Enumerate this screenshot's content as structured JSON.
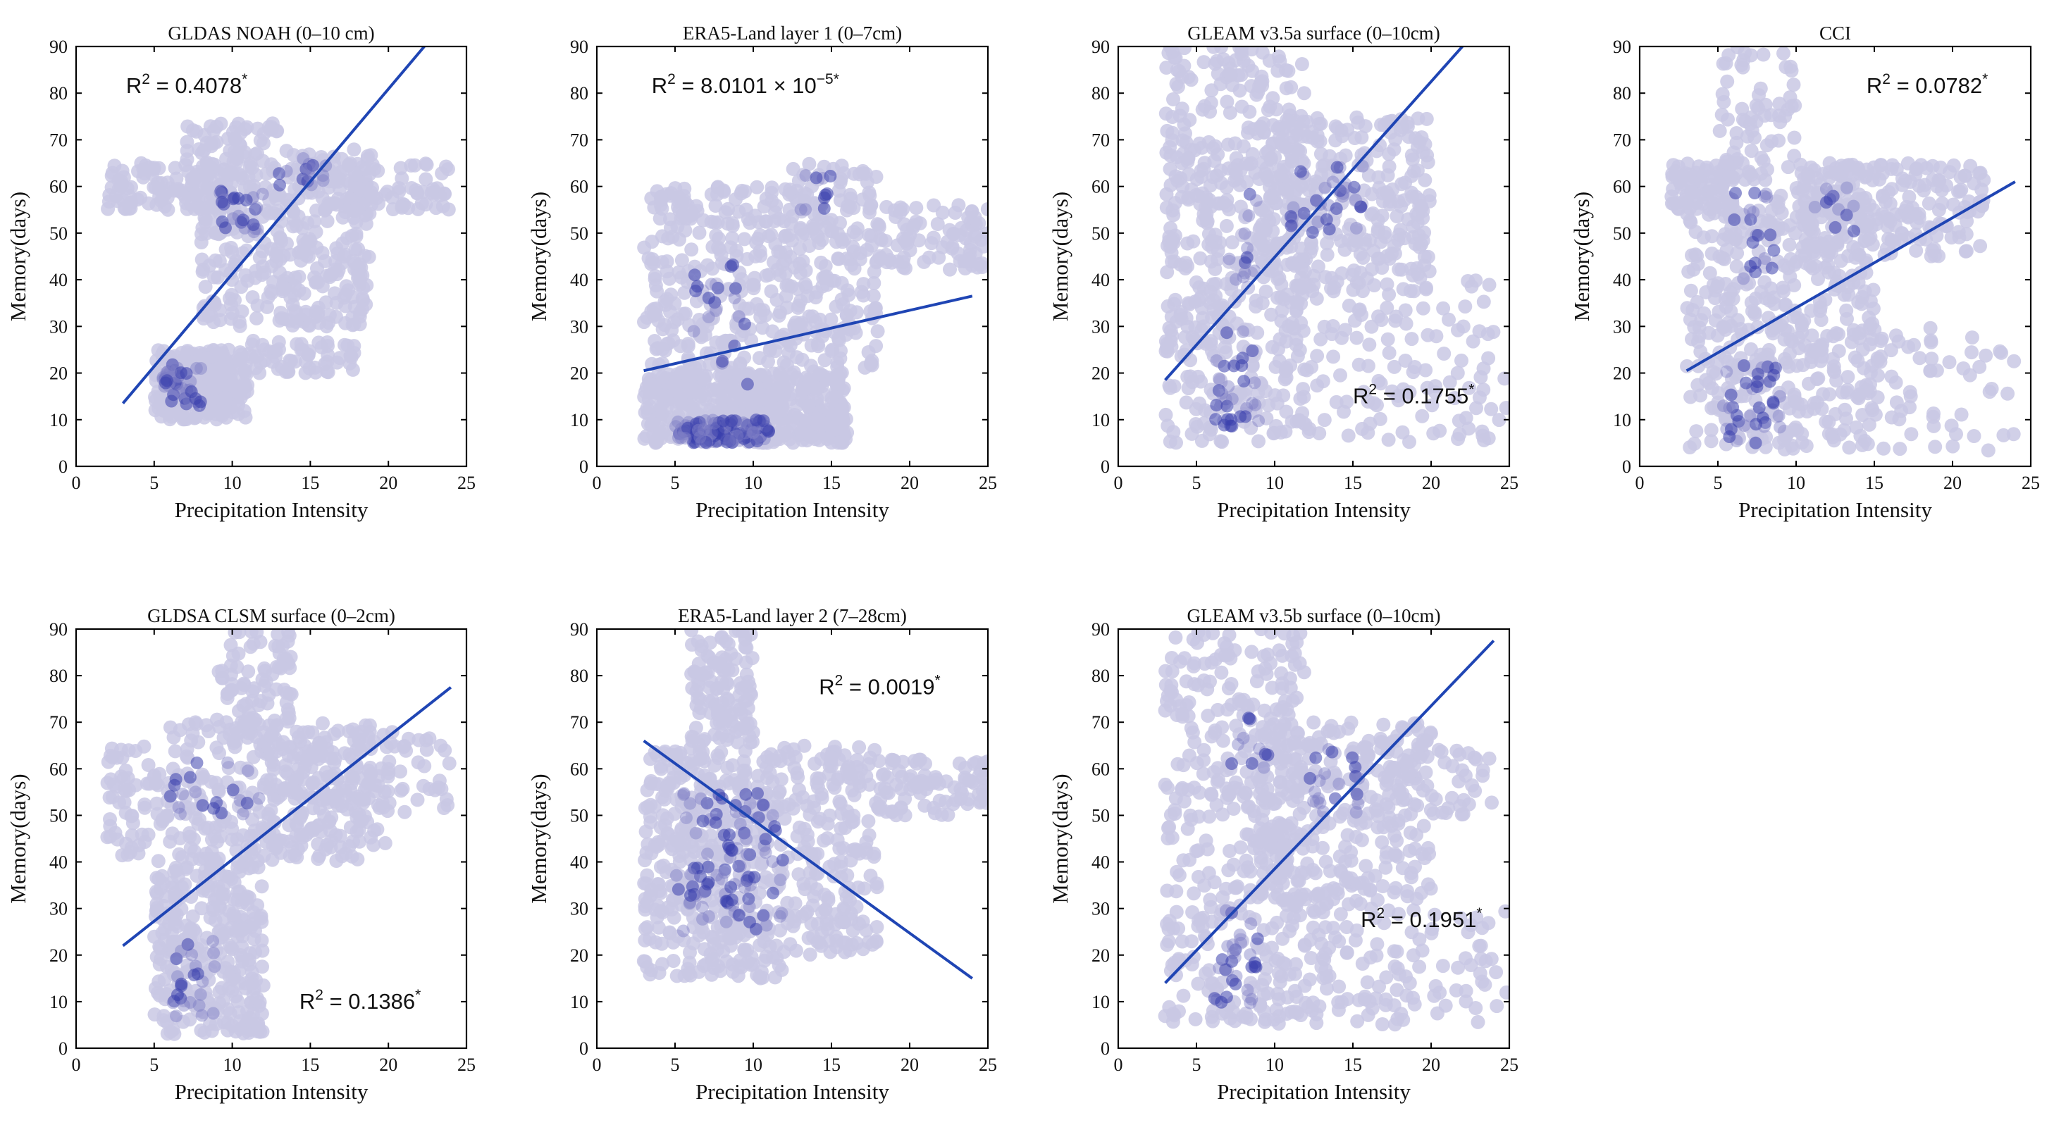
{
  "colors": {
    "density_low": "#c9c8e4",
    "density_mid": "#7f7fc6",
    "density_high": "#3a3fad",
    "fit_line": "#1f45b4"
  },
  "chart_data": [
    {
      "type": "scatter",
      "title": "GLDAS NOAH (0–10 cm)",
      "xlabel": "Precipitation Intensity",
      "ylabel": "Memory(days)",
      "xlim": [
        0,
        25
      ],
      "ylim": [
        0,
        90
      ],
      "xticks": [
        0,
        5,
        10,
        15,
        20,
        25
      ],
      "yticks": [
        0,
        10,
        20,
        30,
        40,
        50,
        60,
        70,
        80,
        90
      ],
      "r2": {
        "prefix": "R",
        "sup": "2",
        "value": " = 0.4078",
        "star": "*",
        "x": 3.2,
        "y": 80
      },
      "fit": {
        "x": [
          3,
          22.3
        ],
        "y": [
          13.5,
          90
        ]
      },
      "clusters": [
        {
          "x": [
            5,
            11
          ],
          "y": [
            10,
            25
          ],
          "n": 240
        },
        {
          "x": [
            8,
            19
          ],
          "y": [
            30,
            68
          ],
          "n": 380
        },
        {
          "x": [
            2,
            10
          ],
          "y": [
            55,
            65
          ],
          "n": 120
        },
        {
          "x": [
            15,
            24
          ],
          "y": [
            55,
            65
          ],
          "n": 90
        },
        {
          "x": [
            11,
            18
          ],
          "y": [
            20,
            27
          ],
          "n": 60
        },
        {
          "x": [
            7,
            13
          ],
          "y": [
            65,
            74
          ],
          "n": 50
        }
      ],
      "dense": [
        {
          "x": [
            5.5,
            8
          ],
          "y": [
            13,
            22
          ],
          "n": 40
        },
        {
          "x": [
            9,
            12
          ],
          "y": [
            50,
            60
          ],
          "n": 25
        },
        {
          "x": [
            13,
            16
          ],
          "y": [
            60,
            66
          ],
          "n": 15
        }
      ]
    },
    {
      "type": "scatter",
      "title": "ERA5-Land layer 1 (0–7cm)",
      "xlabel": "Precipitation Intensity",
      "ylabel": "Memory(days)",
      "xlim": [
        0,
        25
      ],
      "ylim": [
        0,
        90
      ],
      "xticks": [
        0,
        5,
        10,
        15,
        20,
        25
      ],
      "yticks": [
        0,
        10,
        20,
        30,
        40,
        50,
        60,
        70,
        80,
        90
      ],
      "r2": {
        "prefix": "R",
        "sup": "2",
        "value": " = 8.0101 × 10",
        "sup2": "−5",
        "star": "*",
        "x": 3.5,
        "y": 80
      },
      "fit": {
        "x": [
          3,
          24
        ],
        "y": [
          20.5,
          36.5
        ]
      },
      "clusters": [
        {
          "x": [
            3,
            16
          ],
          "y": [
            5,
            20
          ],
          "n": 480
        },
        {
          "x": [
            3,
            12
          ],
          "y": [
            20,
            60
          ],
          "n": 260
        },
        {
          "x": [
            12,
            18
          ],
          "y": [
            20,
            65
          ],
          "n": 220
        },
        {
          "x": [
            18,
            25
          ],
          "y": [
            42,
            56
          ],
          "n": 90
        }
      ],
      "dense": [
        {
          "x": [
            5,
            11
          ],
          "y": [
            5,
            10
          ],
          "n": 120
        },
        {
          "x": [
            6,
            10
          ],
          "y": [
            15,
            45
          ],
          "n": 20
        },
        {
          "x": [
            13,
            15
          ],
          "y": [
            55,
            63
          ],
          "n": 10
        }
      ]
    },
    {
      "type": "scatter",
      "title": "GLEAM v3.5a surface (0–10cm)",
      "xlabel": "Precipitation Intensity",
      "ylabel": "Memory(days)",
      "xlim": [
        0,
        25
      ],
      "ylim": [
        0,
        90
      ],
      "xticks": [
        0,
        5,
        10,
        15,
        20,
        25
      ],
      "yticks": [
        0,
        10,
        20,
        30,
        40,
        50,
        60,
        70,
        80,
        90
      ],
      "r2": {
        "prefix": "R",
        "sup": "2",
        "value": " = 0.1755",
        "star": "*",
        "x": 15,
        "y": 13.5
      },
      "fit": {
        "x": [
          3,
          22
        ],
        "y": [
          18.5,
          90
        ]
      },
      "clusters": [
        {
          "x": [
            3,
            12
          ],
          "y": [
            5,
            90
          ],
          "n": 420
        },
        {
          "x": [
            9,
            20
          ],
          "y": [
            40,
            75
          ],
          "n": 300
        },
        {
          "x": [
            10,
            25
          ],
          "y": [
            5,
            40
          ],
          "n": 150
        },
        {
          "x": [
            3,
            7
          ],
          "y": [
            20,
            70
          ],
          "n": 60
        }
      ],
      "dense": [
        {
          "x": [
            6,
            9
          ],
          "y": [
            8,
            30
          ],
          "n": 30
        },
        {
          "x": [
            11,
            16
          ],
          "y": [
            50,
            65
          ],
          "n": 30
        },
        {
          "x": [
            6,
            9
          ],
          "y": [
            40,
            60
          ],
          "n": 12
        }
      ]
    },
    {
      "type": "scatter",
      "title": "CCI",
      "xlabel": "Precipitation Intensity",
      "ylabel": "Memory(days)",
      "xlim": [
        0,
        25
      ],
      "ylim": [
        0,
        90
      ],
      "xticks": [
        0,
        5,
        10,
        15,
        20,
        25
      ],
      "yticks": [
        0,
        10,
        20,
        30,
        40,
        50,
        60,
        70,
        80,
        90
      ],
      "r2": {
        "prefix": "R",
        "sup": "2",
        "value": " = 0.0782",
        "star": "*",
        "x": 14.5,
        "y": 80
      },
      "fit": {
        "x": [
          3,
          24
        ],
        "y": [
          20.5,
          61
        ]
      },
      "clusters": [
        {
          "x": [
            3,
            15
          ],
          "y": [
            3,
            65
          ],
          "n": 500
        },
        {
          "x": [
            10,
            22
          ],
          "y": [
            45,
            65
          ],
          "n": 220
        },
        {
          "x": [
            2,
            6
          ],
          "y": [
            55,
            65
          ],
          "n": 70
        },
        {
          "x": [
            5,
            10
          ],
          "y": [
            65,
            90
          ],
          "n": 60
        },
        {
          "x": [
            15,
            24
          ],
          "y": [
            3,
            30
          ],
          "n": 60
        }
      ],
      "dense": [
        {
          "x": [
            5,
            9
          ],
          "y": [
            5,
            22
          ],
          "n": 35
        },
        {
          "x": [
            6,
            9
          ],
          "y": [
            40,
            60
          ],
          "n": 20
        },
        {
          "x": [
            11,
            14
          ],
          "y": [
            50,
            60
          ],
          "n": 12
        }
      ]
    },
    {
      "type": "scatter",
      "title": "GLDSA CLSM surface (0–2cm)",
      "xlabel": "Precipitation Intensity",
      "ylabel": "Memory(days)",
      "xlim": [
        0,
        25
      ],
      "ylim": [
        0,
        90
      ],
      "xticks": [
        0,
        5,
        10,
        15,
        20,
        25
      ],
      "yticks": [
        0,
        10,
        20,
        30,
        40,
        50,
        60,
        70,
        80,
        90
      ],
      "r2": {
        "prefix": "R",
        "sup": "2",
        "value": " = 0.1386",
        "star": "*",
        "x": 14.3,
        "y": 8.5
      },
      "fit": {
        "x": [
          3,
          24
        ],
        "y": [
          22,
          77.5
        ]
      },
      "clusters": [
        {
          "x": [
            5,
            12
          ],
          "y": [
            3,
            40
          ],
          "n": 300
        },
        {
          "x": [
            6,
            20
          ],
          "y": [
            40,
            70
          ],
          "n": 340
        },
        {
          "x": [
            2,
            6
          ],
          "y": [
            40,
            65
          ],
          "n": 70
        },
        {
          "x": [
            9,
            14
          ],
          "y": [
            70,
            90
          ],
          "n": 80
        },
        {
          "x": [
            12,
            24
          ],
          "y": [
            50,
            68
          ],
          "n": 100
        }
      ],
      "dense": [
        {
          "x": [
            6,
            9
          ],
          "y": [
            5,
            25
          ],
          "n": 25
        },
        {
          "x": [
            6,
            12
          ],
          "y": [
            50,
            62
          ],
          "n": 20
        }
      ]
    },
    {
      "type": "scatter",
      "title": "ERA5-Land  layer 2 (7–28cm)",
      "xlabel": "Precipitation Intensity",
      "ylabel": "Memory(days)",
      "xlim": [
        0,
        25
      ],
      "ylim": [
        0,
        90
      ],
      "xticks": [
        0,
        5,
        10,
        15,
        20,
        25
      ],
      "yticks": [
        0,
        10,
        20,
        30,
        40,
        50,
        60,
        70,
        80,
        90
      ],
      "r2": {
        "prefix": "R",
        "sup": "2",
        "value": " = 0.0019",
        "star": "*",
        "x": 14.2,
        "y": 76
      },
      "fit": {
        "x": [
          3,
          24
        ],
        "y": [
          66,
          15
        ]
      },
      "clusters": [
        {
          "x": [
            3,
            12
          ],
          "y": [
            15,
            65
          ],
          "n": 420
        },
        {
          "x": [
            12,
            18
          ],
          "y": [
            20,
            65
          ],
          "n": 200
        },
        {
          "x": [
            6,
            10
          ],
          "y": [
            65,
            90
          ],
          "n": 120
        },
        {
          "x": [
            18,
            25
          ],
          "y": [
            50,
            62
          ],
          "n": 90
        }
      ],
      "dense": [
        {
          "x": [
            5,
            12
          ],
          "y": [
            25,
            55
          ],
          "n": 80
        },
        {
          "x": [
            7,
            10
          ],
          "y": [
            28,
            45
          ],
          "n": 20
        }
      ]
    },
    {
      "type": "scatter",
      "title": "GLEAM v3.5b surface (0–10cm)",
      "xlabel": "Precipitation Intensity",
      "ylabel": "Memory(days)",
      "xlim": [
        0,
        25
      ],
      "ylim": [
        0,
        90
      ],
      "xticks": [
        0,
        5,
        10,
        15,
        20,
        25
      ],
      "yticks": [
        0,
        10,
        20,
        30,
        40,
        50,
        60,
        70,
        80,
        90
      ],
      "r2": {
        "prefix": "R",
        "sup": "2",
        "value": " = 0.1951",
        "star": "*",
        "x": 15.5,
        "y": 26
      },
      "fit": {
        "x": [
          3,
          24
        ],
        "y": [
          14,
          87.5
        ]
      },
      "clusters": [
        {
          "x": [
            3,
            12
          ],
          "y": [
            5,
            90
          ],
          "n": 420
        },
        {
          "x": [
            9,
            20
          ],
          "y": [
            30,
            70
          ],
          "n": 300
        },
        {
          "x": [
            12,
            25
          ],
          "y": [
            5,
            30
          ],
          "n": 120
        },
        {
          "x": [
            15,
            24
          ],
          "y": [
            50,
            65
          ],
          "n": 60
        }
      ],
      "dense": [
        {
          "x": [
            6,
            9
          ],
          "y": [
            8,
            30
          ],
          "n": 30
        },
        {
          "x": [
            12,
            16
          ],
          "y": [
            50,
            65
          ],
          "n": 20
        },
        {
          "x": [
            7,
            10
          ],
          "y": [
            55,
            72
          ],
          "n": 10
        }
      ]
    }
  ]
}
